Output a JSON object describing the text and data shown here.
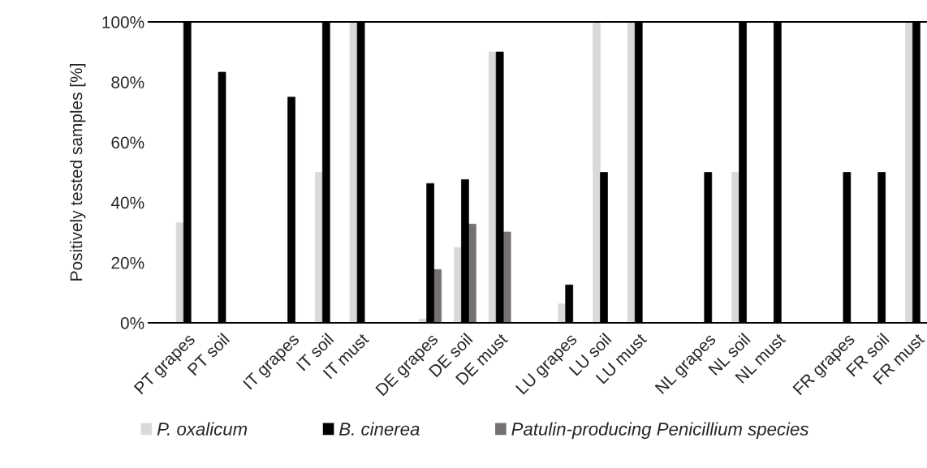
{
  "chart_data": {
    "type": "bar",
    "ylabel": "Positively tested samples [%]",
    "categories": [
      "PT grapes",
      "PT soil",
      null,
      "IT grapes",
      "IT soil",
      "IT must",
      null,
      "DE grapes",
      "DE soil",
      "DE must",
      null,
      "LU grapes",
      "LU soil",
      "LU must",
      null,
      "NL grapes",
      "NL soil",
      "NL must",
      null,
      "FR grapes",
      "FR soil",
      "FR must"
    ],
    "series": [
      {
        "name": "P. oxalicum",
        "color": "#d9d9d9",
        "values": [
          33.3,
          0,
          null,
          0,
          50,
          100,
          null,
          1.3,
          25,
          90,
          null,
          6.3,
          100,
          100,
          null,
          0,
          50,
          0,
          null,
          0,
          0,
          100
        ]
      },
      {
        "name": "B. cinerea",
        "color": "#000000",
        "values": [
          100,
          83.3,
          null,
          75,
          100,
          100,
          null,
          46.3,
          47.6,
          90,
          null,
          12.6,
          50,
          100,
          null,
          50,
          100,
          100,
          null,
          50,
          50,
          100
        ]
      },
      {
        "name": "Patulin-producing Penicillium species",
        "color": "#767171",
        "values": [
          0,
          0,
          null,
          0,
          0,
          0,
          null,
          17.7,
          32.8,
          30.2,
          null,
          0,
          0,
          0,
          null,
          0,
          0,
          0,
          null,
          0,
          0,
          0
        ]
      }
    ],
    "ylim": [
      0,
      100
    ],
    "yticks": [
      {
        "value": 0,
        "label": "0%"
      },
      {
        "value": 20,
        "label": "20%"
      },
      {
        "value": 40,
        "label": "40%"
      },
      {
        "value": 60,
        "label": "60%"
      },
      {
        "value": 80,
        "label": "80%"
      },
      {
        "value": 100,
        "label": "100%"
      }
    ],
    "grid": false,
    "legend": "bottom"
  }
}
